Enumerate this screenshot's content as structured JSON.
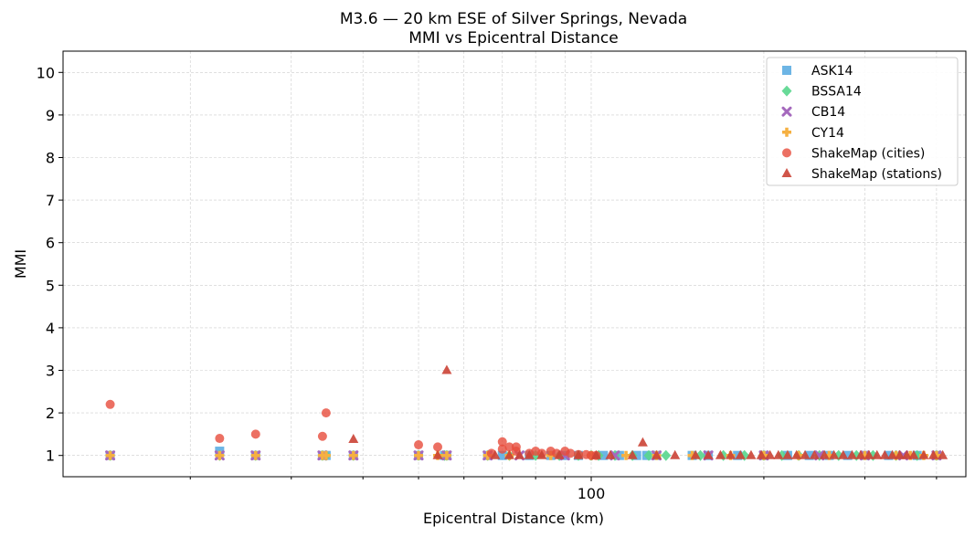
{
  "chart_data": {
    "type": "scatter",
    "title": "M3.6 — 20 km ESE of Silver Springs, Nevada",
    "subtitle": "MMI vs Epicentral Distance",
    "xlabel": "Epicentral Distance (km)",
    "ylabel": "MMI",
    "xscale": "log",
    "xlim": [
      12,
      450
    ],
    "ylim": [
      0.5,
      10.5
    ],
    "xticks": [
      {
        "value": 100,
        "label": "100"
      }
    ],
    "xminor_ticks": [
      20,
      30,
      40,
      50,
      60,
      70,
      80,
      90,
      200,
      300,
      400
    ],
    "yticks": [
      1,
      2,
      3,
      4,
      5,
      6,
      7,
      8,
      9,
      10
    ],
    "grid": true,
    "legend_position": "top-right",
    "series": [
      {
        "name": "ASK14",
        "marker": "square",
        "color": "#5dade2",
        "x": [
          14.5,
          22.5,
          26,
          34,
          34.5,
          38.5,
          50,
          55.5,
          56,
          66,
          70,
          78,
          85,
          90,
          95,
          105,
          112,
          120,
          125,
          130,
          150,
          160,
          180,
          200,
          220,
          240,
          260,
          280,
          300,
          330,
          370,
          400
        ],
        "y": [
          1,
          1.1,
          1,
          1,
          1,
          1,
          1,
          1,
          1,
          1,
          1,
          1,
          1,
          1,
          1,
          1,
          1,
          1,
          1,
          1,
          1,
          1,
          1,
          1,
          1,
          1,
          1,
          1,
          1,
          1,
          1,
          1
        ]
      },
      {
        "name": "BSSA14",
        "marker": "diamond",
        "color": "#58d68d",
        "x": [
          14.5,
          22.5,
          26,
          34,
          34.5,
          38.5,
          50,
          55.5,
          56,
          66,
          72,
          80,
          88,
          95,
          100,
          103,
          110,
          118,
          126,
          135,
          155,
          170,
          185,
          200,
          215,
          230,
          250,
          270,
          290,
          310,
          340,
          370,
          400
        ],
        "y": [
          1,
          1,
          1,
          1,
          1,
          1,
          1,
          1,
          1,
          1,
          1,
          1,
          1,
          1,
          1,
          1,
          1,
          1,
          1,
          1,
          1,
          1,
          1,
          1,
          1,
          1,
          1,
          1,
          1,
          1,
          1,
          1,
          1
        ]
      },
      {
        "name": "CB14",
        "marker": "x",
        "color": "#a569bd",
        "x": [
          14.5,
          22.5,
          26,
          34,
          38.5,
          50,
          56,
          66,
          75,
          90,
          110,
          130,
          160,
          200,
          250,
          300,
          350,
          400
        ],
        "y": [
          1,
          1,
          1,
          1,
          1,
          1,
          1,
          1,
          1,
          1,
          1,
          1,
          1,
          1,
          1,
          1,
          1,
          1
        ]
      },
      {
        "name": "CY14",
        "marker": "plus",
        "color": "#f5b041",
        "x": [
          14.5,
          22.5,
          26,
          34,
          34.5,
          38.5,
          50,
          54,
          56,
          66,
          72,
          85,
          100,
          115,
          130,
          150,
          175,
          200,
          230,
          260,
          300,
          340,
          360,
          380,
          400
        ],
        "y": [
          1,
          1,
          1,
          1,
          1,
          1,
          1,
          1,
          1,
          1,
          1,
          1,
          1,
          1,
          1,
          1,
          1,
          1,
          1,
          1,
          1,
          1,
          1,
          1,
          1
        ]
      },
      {
        "name": "ShakeMap (cities)",
        "marker": "circle",
        "color": "#e74c3c",
        "x": [
          14.5,
          22.5,
          26,
          34,
          34.5,
          50,
          54,
          67,
          70,
          70,
          72,
          74,
          74,
          78,
          80,
          82,
          85,
          87,
          90,
          92,
          95,
          98,
          100,
          102
        ],
        "y": [
          2.2,
          1.4,
          1.5,
          1.45,
          2.0,
          1.25,
          1.2,
          1.05,
          1.32,
          1.15,
          1.2,
          1.2,
          1.1,
          1.05,
          1.1,
          1.05,
          1.1,
          1.05,
          1.1,
          1.05,
          1.02,
          1.02,
          1.0,
          1.0
        ]
      },
      {
        "name": "ShakeMap (stations)",
        "marker": "triangle",
        "color": "#cb4335",
        "x": [
          38.5,
          54,
          56,
          68,
          72,
          75,
          78,
          82,
          88,
          95,
          102,
          108,
          118,
          123,
          130,
          140,
          152,
          160,
          168,
          175,
          182,
          190,
          198,
          205,
          212,
          220,
          228,
          236,
          245,
          255,
          265,
          275,
          285,
          295,
          305,
          315,
          325,
          335,
          345,
          355,
          365,
          380,
          395,
          410
        ],
        "y": [
          1.38,
          1.0,
          3.0,
          1.0,
          1.0,
          1.0,
          1.0,
          1.0,
          1.0,
          1.0,
          1.0,
          1.0,
          1.0,
          1.3,
          1.0,
          1.0,
          1.0,
          1.0,
          1.0,
          1.0,
          1.0,
          1.0,
          1.0,
          1.0,
          1.0,
          1.0,
          1.0,
          1.0,
          1.0,
          1.0,
          1.0,
          1.0,
          1.0,
          1.0,
          1.0,
          1.0,
          1.0,
          1.0,
          1.0,
          1.0,
          1.0,
          1.0,
          1.0,
          1.0
        ]
      }
    ]
  }
}
